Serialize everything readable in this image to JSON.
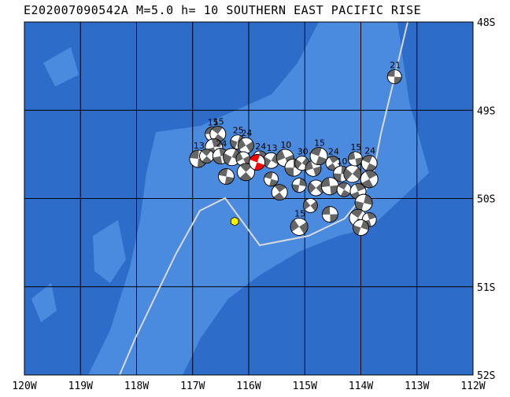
{
  "title": "E202007090542A M=5.0 h= 10 SOUTHERN EAST PACIFIC RISE",
  "lon_labels": [
    "120W",
    "119W",
    "118W",
    "117W",
    "116W",
    "115W",
    "114W",
    "113W",
    "112W"
  ],
  "lat_labels": [
    "48S",
    "49S",
    "50S",
    "51S",
    "52S"
  ],
  "lon_range": [
    -120,
    -112
  ],
  "lat_range": [
    -52,
    -48
  ],
  "colors": {
    "deep_ocean": "#2e6cc9",
    "ridge_shallow": "#4a8be0",
    "grid": "#000000",
    "plate_boundary": "#d9d9d9",
    "main_event": "#ff0000",
    "mechanism_dark": "#666666",
    "epicenter_marker": "#ffee00"
  },
  "main_event": {
    "lon": -115.85,
    "lat": -49.59,
    "depth": "10"
  },
  "epicenter_marker": {
    "lon": -116.25,
    "lat": -50.26
  },
  "events": [
    {
      "lon": -116.65,
      "lat": -49.27,
      "label": "15"
    },
    {
      "lon": -116.55,
      "lat": -49.27,
      "label": "15"
    },
    {
      "lon": -116.62,
      "lat": -49.42,
      "label": ""
    },
    {
      "lon": -116.2,
      "lat": -49.36,
      "label": "25"
    },
    {
      "lon": -116.05,
      "lat": -49.4,
      "label": "24"
    },
    {
      "lon": -116.9,
      "lat": -49.55,
      "label": "13"
    },
    {
      "lon": -116.75,
      "lat": -49.52,
      "label": ""
    },
    {
      "lon": -116.5,
      "lat": -49.52,
      "label": "24"
    },
    {
      "lon": -116.3,
      "lat": -49.53,
      "label": ""
    },
    {
      "lon": -116.1,
      "lat": -49.55,
      "label": ""
    },
    {
      "lon": -116.4,
      "lat": -49.75,
      "label": ""
    },
    {
      "lon": -116.05,
      "lat": -49.7,
      "label": ""
    },
    {
      "lon": -115.8,
      "lat": -49.54,
      "label": "24"
    },
    {
      "lon": -115.6,
      "lat": -49.57,
      "label": "13"
    },
    {
      "lon": -115.35,
      "lat": -49.54,
      "label": "10"
    },
    {
      "lon": -115.6,
      "lat": -49.78,
      "label": ""
    },
    {
      "lon": -115.45,
      "lat": -49.93,
      "label": ""
    },
    {
      "lon": -115.2,
      "lat": -49.65,
      "label": ""
    },
    {
      "lon": -115.05,
      "lat": -49.6,
      "label": "30"
    },
    {
      "lon": -114.85,
      "lat": -49.66,
      "label": "15"
    },
    {
      "lon": -114.75,
      "lat": -49.52,
      "label": "15"
    },
    {
      "lon": -114.5,
      "lat": -49.6,
      "label": "24"
    },
    {
      "lon": -114.35,
      "lat": -49.72,
      "label": "10"
    },
    {
      "lon": -114.15,
      "lat": -49.72,
      "label": "10"
    },
    {
      "lon": -114.1,
      "lat": -49.55,
      "label": "15"
    },
    {
      "lon": -113.85,
      "lat": -49.6,
      "label": "24"
    },
    {
      "lon": -113.85,
      "lat": -49.78,
      "label": ""
    },
    {
      "lon": -115.1,
      "lat": -49.85,
      "label": ""
    },
    {
      "lon": -114.8,
      "lat": -49.88,
      "label": ""
    },
    {
      "lon": -114.55,
      "lat": -49.86,
      "label": ""
    },
    {
      "lon": -114.3,
      "lat": -49.9,
      "label": ""
    },
    {
      "lon": -114.05,
      "lat": -49.92,
      "label": ""
    },
    {
      "lon": -113.95,
      "lat": -50.05,
      "label": ""
    },
    {
      "lon": -114.9,
      "lat": -50.08,
      "label": ""
    },
    {
      "lon": -114.55,
      "lat": -50.18,
      "label": ""
    },
    {
      "lon": -114.05,
      "lat": -50.22,
      "label": ""
    },
    {
      "lon": -113.85,
      "lat": -50.24,
      "label": ""
    },
    {
      "lon": -114.0,
      "lat": -50.33,
      "label": ""
    },
    {
      "lon": -115.1,
      "lat": -50.32,
      "label": "15"
    },
    {
      "lon": -113.4,
      "lat": -48.62,
      "label": "21"
    }
  ]
}
